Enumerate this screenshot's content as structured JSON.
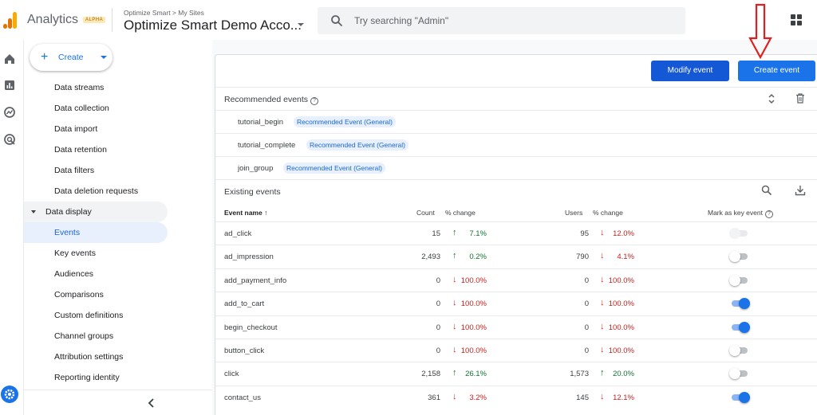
{
  "header": {
    "app_title": "Analytics",
    "alpha_badge": "ALPHA",
    "breadcrumb": "Optimize Smart > My Sites",
    "account_name": "Optimize Smart Demo Acco...",
    "search_placeholder": "Try searching \"Admin\""
  },
  "sidebar": {
    "create_label": "Create",
    "items": [
      {
        "label": "Data streams"
      },
      {
        "label": "Data collection"
      },
      {
        "label": "Data import"
      },
      {
        "label": "Data retention"
      },
      {
        "label": "Data filters"
      },
      {
        "label": "Data deletion requests"
      },
      {
        "label": "Data display"
      },
      {
        "label": "Events"
      },
      {
        "label": "Key events"
      },
      {
        "label": "Audiences"
      },
      {
        "label": "Comparisons"
      },
      {
        "label": "Custom definitions"
      },
      {
        "label": "Channel groups"
      },
      {
        "label": "Attribution settings"
      },
      {
        "label": "Reporting identity"
      }
    ]
  },
  "toolbar": {
    "modify_label": "Modify event",
    "create_label": "Create event"
  },
  "recommended": {
    "title": "Recommended events",
    "items": [
      {
        "name": "tutorial_begin",
        "chip": "Recommended Event (General)"
      },
      {
        "name": "tutorial_complete",
        "chip": "Recommended Event (General)"
      },
      {
        "name": "join_group",
        "chip": "Recommended Event (General)"
      }
    ]
  },
  "existing": {
    "title": "Existing events",
    "columns": {
      "event_name": "Event name",
      "count": "Count",
      "count_change": "% change",
      "users": "Users",
      "users_change": "% change",
      "key_event": "Mark as key event"
    },
    "rows": [
      {
        "name": "ad_click",
        "count": "15",
        "count_dir": "up",
        "count_pct": "7.1%",
        "users": "95",
        "users_dir": "down",
        "users_pct": "12.0%",
        "key": "disabled"
      },
      {
        "name": "ad_impression",
        "count": "2,493",
        "count_dir": "up",
        "count_pct": "0.2%",
        "users": "790",
        "users_dir": "down",
        "users_pct": "4.1%",
        "key": "off"
      },
      {
        "name": "add_payment_info",
        "count": "0",
        "count_dir": "down",
        "count_pct": "100.0%",
        "users": "0",
        "users_dir": "down",
        "users_pct": "100.0%",
        "key": "off"
      },
      {
        "name": "add_to_cart",
        "count": "0",
        "count_dir": "down",
        "count_pct": "100.0%",
        "users": "0",
        "users_dir": "down",
        "users_pct": "100.0%",
        "key": "on"
      },
      {
        "name": "begin_checkout",
        "count": "0",
        "count_dir": "down",
        "count_pct": "100.0%",
        "users": "0",
        "users_dir": "down",
        "users_pct": "100.0%",
        "key": "on"
      },
      {
        "name": "button_click",
        "count": "0",
        "count_dir": "down",
        "count_pct": "100.0%",
        "users": "0",
        "users_dir": "down",
        "users_pct": "100.0%",
        "key": "off"
      },
      {
        "name": "click",
        "count": "2,158",
        "count_dir": "up",
        "count_pct": "26.1%",
        "users": "1,573",
        "users_dir": "up",
        "users_pct": "20.0%",
        "key": "off"
      },
      {
        "name": "contact_us",
        "count": "361",
        "count_dir": "down",
        "count_pct": "3.2%",
        "users": "145",
        "users_dir": "down",
        "users_pct": "12.1%",
        "key": "on"
      }
    ]
  },
  "icons": {
    "rail": [
      "home-icon",
      "reports-icon",
      "explore-icon",
      "advertising-icon",
      "admin-gear-icon"
    ],
    "search": "search-icon",
    "apps": "apps-grid-icon",
    "sort": "sort-arrow-up-icon",
    "annotation": "red-down-arrow-icon"
  },
  "colors": {
    "primary": "#1a73e8",
    "up": "#137333",
    "down": "#d93025",
    "active_nav_bg": "#e8f0fe",
    "annotation": "#e02020"
  }
}
